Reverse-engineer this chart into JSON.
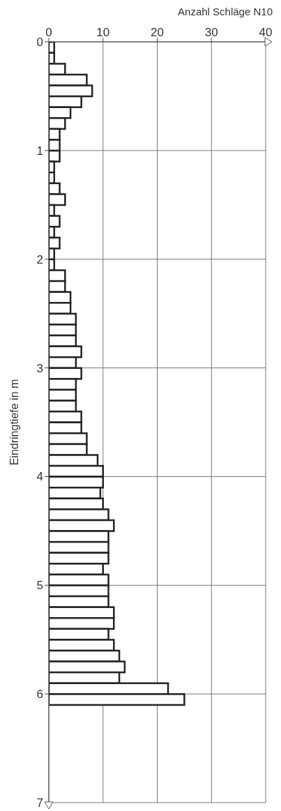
{
  "chart_data": {
    "type": "histogram",
    "orientation": "horizontal",
    "xlabel": "Anzahl Schläge N10",
    "ylabel": "Eindringtiefe in m",
    "bins": [
      0,
      0.1,
      0.2,
      0.3,
      0.4,
      0.5,
      0.6,
      0.7,
      0.8,
      0.9,
      1.0,
      1.1,
      1.2,
      1.3,
      1.4,
      1.5,
      1.6,
      1.7,
      1.8,
      1.9,
      2.0,
      2.1,
      2.2,
      2.3,
      2.4,
      2.5,
      2.6,
      2.7,
      2.8,
      2.9,
      3.0,
      3.1,
      3.2,
      3.3,
      3.4,
      3.5,
      3.6,
      3.7,
      3.8,
      3.9,
      4.0,
      4.1,
      4.2,
      4.3,
      4.4,
      4.5,
      4.6,
      4.7,
      4.8,
      4.9,
      5.0,
      5.1,
      5.2,
      5.3,
      5.4,
      5.5,
      5.6,
      5.7,
      5.8,
      5.9,
      6.0,
      6.1
    ],
    "values": [
      1,
      1,
      3,
      7,
      8,
      6,
      4,
      3,
      2,
      2,
      2,
      1,
      1,
      2,
      3,
      1,
      2,
      1,
      2,
      1,
      1,
      3,
      3,
      4,
      4,
      5,
      5,
      5,
      6,
      5,
      6,
      5,
      5,
      5,
      6,
      6,
      7,
      7,
      9,
      10,
      10,
      9.5,
      10,
      11,
      12,
      11,
      11,
      11,
      10,
      11,
      11,
      11,
      12,
      12,
      11,
      12,
      13,
      14,
      13,
      22,
      25
    ],
    "color": "#222222",
    "xlim": [
      0,
      40
    ],
    "xticks": [
      0,
      10,
      20,
      30,
      40
    ],
    "ylim": [
      7,
      0
    ],
    "yticks": [
      0,
      1,
      2,
      3,
      4,
      5,
      6,
      7
    ],
    "grid": true
  }
}
